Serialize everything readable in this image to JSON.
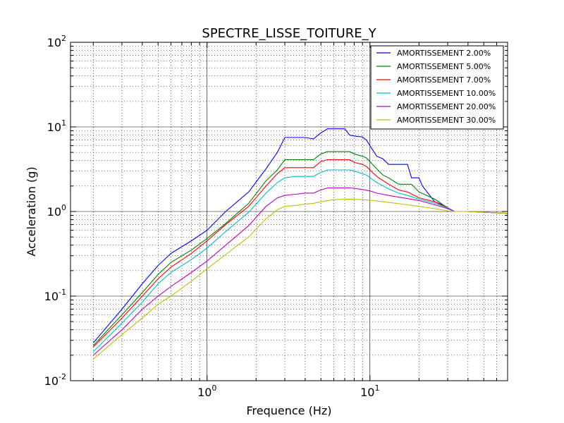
{
  "chart_data": {
    "type": "line",
    "title": "SPECTRE_LISSE_TOITURE_Y",
    "xlabel": "Frequence (Hz)",
    "ylabel": "Acceleration (g)",
    "xscale": "log",
    "yscale": "log",
    "xlim": [
      0.145,
      70
    ],
    "ylim": [
      0.01,
      100
    ],
    "grid": true,
    "legend_position": "top-right",
    "x_ticks": [
      {
        "value": 1,
        "base": "10",
        "exp": "0"
      },
      {
        "value": 10,
        "base": "10",
        "exp": "1"
      }
    ],
    "y_ticks": [
      {
        "value": 0.01,
        "base": "10",
        "exp": "-2"
      },
      {
        "value": 0.1,
        "base": "10",
        "exp": "-1"
      },
      {
        "value": 1,
        "base": "10",
        "exp": "0"
      },
      {
        "value": 10,
        "base": "10",
        "exp": "1"
      },
      {
        "value": 100,
        "base": "10",
        "exp": "2"
      }
    ],
    "series": [
      {
        "name": "AMORTISSEMENT 2.00%",
        "color": "#0000ff",
        "x": [
          0.2,
          0.3,
          0.4,
          0.5,
          0.6,
          0.8,
          1.0,
          1.3,
          1.8,
          2.3,
          2.7,
          3.0,
          3.5,
          4.0,
          4.5,
          5.0,
          5.5,
          6.0,
          7.0,
          7.5,
          8.0,
          9.0,
          9.5,
          11.0,
          12.0,
          13.0,
          17.0,
          18.0,
          20.0,
          21.0,
          25.0,
          28.0,
          33.0,
          40.0,
          70.0
        ],
        "y": [
          0.028,
          0.07,
          0.14,
          0.23,
          0.32,
          0.45,
          0.6,
          1.0,
          1.7,
          3.2,
          5.0,
          7.5,
          7.5,
          7.5,
          7.2,
          8.5,
          9.5,
          9.5,
          9.5,
          8.0,
          7.8,
          7.6,
          7.0,
          4.5,
          4.2,
          3.6,
          3.6,
          2.5,
          2.5,
          2.0,
          1.3,
          1.2,
          1.0,
          1.0,
          0.95
        ]
      },
      {
        "name": "AMORTISSEMENT 5.00%",
        "color": "#008000",
        "x": [
          0.2,
          0.3,
          0.4,
          0.5,
          0.6,
          0.8,
          1.0,
          1.3,
          1.8,
          2.3,
          2.7,
          3.0,
          3.5,
          4.0,
          4.5,
          5.0,
          5.5,
          6.0,
          7.0,
          7.5,
          8.0,
          9.0,
          9.5,
          11.0,
          12.0,
          13.0,
          15.0,
          18.0,
          20.0,
          25.0,
          30.0,
          33.0,
          40.0,
          70.0
        ],
        "y": [
          0.026,
          0.06,
          0.11,
          0.18,
          0.25,
          0.35,
          0.48,
          0.72,
          1.25,
          2.3,
          3.1,
          4.1,
          4.1,
          4.1,
          4.1,
          4.8,
          5.1,
          5.1,
          5.1,
          5.1,
          4.8,
          4.5,
          4.3,
          3.2,
          2.7,
          2.5,
          2.1,
          2.1,
          1.7,
          1.4,
          1.1,
          1.0,
          1.0,
          0.95
        ]
      },
      {
        "name": "AMORTISSEMENT 7.00%",
        "color": "#ff0000",
        "x": [
          0.2,
          0.3,
          0.4,
          0.5,
          0.6,
          0.8,
          1.0,
          1.3,
          1.8,
          2.3,
          2.7,
          3.0,
          3.5,
          4.0,
          4.5,
          5.0,
          5.5,
          6.0,
          7.0,
          7.5,
          8.0,
          9.0,
          9.5,
          11.0,
          13.0,
          15.0,
          17.0,
          20.0,
          25.0,
          30.0,
          33.0,
          40.0,
          70.0
        ],
        "y": [
          0.025,
          0.055,
          0.1,
          0.16,
          0.22,
          0.32,
          0.45,
          0.7,
          1.15,
          2.0,
          2.8,
          3.3,
          3.3,
          3.3,
          3.3,
          3.9,
          4.1,
          4.1,
          4.1,
          4.1,
          3.8,
          3.6,
          3.4,
          2.6,
          2.1,
          1.8,
          1.7,
          1.45,
          1.3,
          1.1,
          1.0,
          1.0,
          0.95
        ]
      },
      {
        "name": "AMORTISSEMENT 10.00%",
        "color": "#00bfbf",
        "x": [
          0.2,
          0.3,
          0.4,
          0.5,
          0.6,
          0.8,
          1.0,
          1.3,
          1.8,
          2.3,
          2.7,
          3.0,
          3.5,
          4.0,
          4.5,
          5.0,
          5.5,
          6.0,
          7.0,
          7.5,
          8.0,
          9.0,
          9.5,
          11.0,
          13.0,
          15.0,
          17.0,
          20.0,
          25.0,
          30.0,
          33.0,
          40.0,
          70.0
        ],
        "y": [
          0.022,
          0.048,
          0.085,
          0.14,
          0.19,
          0.27,
          0.37,
          0.58,
          0.98,
          1.65,
          2.2,
          2.5,
          2.6,
          2.6,
          2.6,
          2.9,
          3.1,
          3.1,
          3.1,
          3.1,
          3.0,
          2.8,
          2.7,
          2.2,
          1.85,
          1.65,
          1.55,
          1.4,
          1.25,
          1.1,
          1.0,
          1.0,
          0.95
        ]
      },
      {
        "name": "AMORTISSEMENT 20.00%",
        "color": "#bf00bf",
        "x": [
          0.2,
          0.3,
          0.4,
          0.5,
          0.6,
          0.8,
          1.0,
          1.3,
          1.8,
          2.3,
          2.7,
          3.0,
          3.5,
          4.0,
          4.5,
          5.0,
          5.5,
          6.0,
          7.0,
          7.5,
          8.0,
          9.0,
          10.0,
          11.0,
          13.0,
          15.0,
          17.0,
          20.0,
          25.0,
          30.0,
          33.0,
          40.0,
          70.0
        ],
        "y": [
          0.02,
          0.04,
          0.07,
          0.1,
          0.13,
          0.19,
          0.26,
          0.4,
          0.68,
          1.15,
          1.45,
          1.55,
          1.6,
          1.65,
          1.65,
          1.8,
          1.9,
          1.9,
          1.9,
          1.9,
          1.88,
          1.82,
          1.75,
          1.65,
          1.55,
          1.48,
          1.42,
          1.35,
          1.2,
          1.08,
          1.0,
          1.0,
          0.95
        ]
      },
      {
        "name": "AMORTISSEMENT 30.00%",
        "color": "#bfbf00",
        "x": [
          0.2,
          0.3,
          0.4,
          0.5,
          0.6,
          0.8,
          1.0,
          1.3,
          1.8,
          2.3,
          2.7,
          3.0,
          3.5,
          4.0,
          4.5,
          5.0,
          5.5,
          6.0,
          7.0,
          7.5,
          8.0,
          9.0,
          10.0,
          11.0,
          13.0,
          15.0,
          17.0,
          20.0,
          25.0,
          30.0,
          33.0,
          40.0,
          70.0
        ],
        "y": [
          0.018,
          0.035,
          0.055,
          0.08,
          0.1,
          0.15,
          0.21,
          0.31,
          0.5,
          0.82,
          1.05,
          1.15,
          1.18,
          1.22,
          1.25,
          1.3,
          1.35,
          1.38,
          1.4,
          1.4,
          1.4,
          1.38,
          1.36,
          1.33,
          1.28,
          1.24,
          1.2,
          1.15,
          1.08,
          1.02,
          1.0,
          1.0,
          0.95
        ]
      }
    ]
  }
}
